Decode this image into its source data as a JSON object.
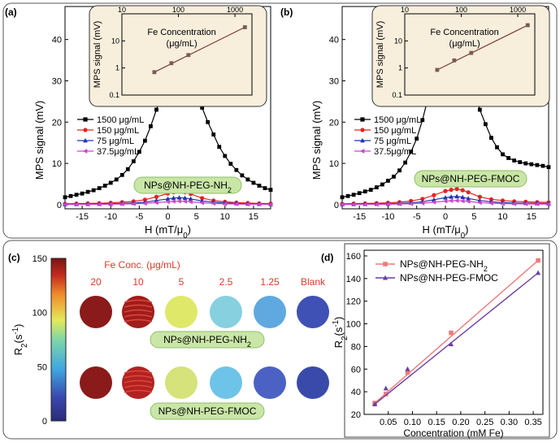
{
  "figure": {
    "panels": {
      "a": "(a)",
      "b": "(b)",
      "c": "(c)",
      "d": "(d)"
    }
  },
  "chart_data": [
    {
      "id": "a",
      "type": "line",
      "xlabel": "H (mT/μ0)",
      "ylabel": "MPS signal (mV)",
      "xlim": [
        -18,
        18
      ],
      "ylim": [
        -1,
        48
      ],
      "xticks": [
        -15,
        -10,
        -5,
        0,
        5,
        10,
        15
      ],
      "yticks": [
        0,
        10,
        20,
        30,
        40
      ],
      "label_box": "NPs@NH-PEG-NH2",
      "series": [
        {
          "name": "1500 μg/mL",
          "color": "#000000",
          "marker": "square",
          "x": [
            -18,
            -17,
            -16,
            -15,
            -14,
            -13,
            -12,
            -11,
            -10,
            -9,
            -8,
            -7,
            -6,
            -5,
            -4,
            -3,
            -2,
            -1,
            0,
            1,
            2,
            3,
            4,
            5,
            6,
            7,
            8,
            9,
            10,
            11,
            12,
            13,
            14,
            15,
            16,
            17,
            18
          ],
          "y": [
            1.8,
            2.1,
            2.4,
            2.7,
            3.1,
            3.5,
            4.0,
            4.6,
            5.3,
            6.1,
            7.2,
            8.6,
            10.5,
            12.8,
            15.5,
            19,
            23,
            27,
            30,
            31.5,
            32.5,
            31.5,
            29.8,
            27,
            23.5,
            20,
            17,
            14,
            11.8,
            9.9,
            8.4,
            7.1,
            6.1,
            5.3,
            4.6,
            4.0,
            3.6
          ]
        },
        {
          "name": "150 μg/mL",
          "color": "#e8231e",
          "marker": "circle",
          "x": [
            -18,
            -16,
            -14,
            -12,
            -10,
            -8,
            -6,
            -4,
            -2,
            0,
            1,
            2,
            3,
            4,
            6,
            8,
            10,
            12,
            14,
            16,
            18
          ],
          "y": [
            0.2,
            0.25,
            0.3,
            0.35,
            0.45,
            0.6,
            0.8,
            1.2,
            1.9,
            2.7,
            3.0,
            3.2,
            3.0,
            2.6,
            1.6,
            1.0,
            0.7,
            0.5,
            0.4,
            0.3,
            0.25
          ]
        },
        {
          "name": "75 μg/mL",
          "color": "#2233aa",
          "marker": "triangle",
          "x": [
            -18,
            -16,
            -14,
            -12,
            -10,
            -8,
            -6,
            -4,
            -2,
            0,
            1,
            2,
            3,
            4,
            6,
            8,
            10,
            12,
            14,
            16,
            18
          ],
          "y": [
            0.1,
            0.12,
            0.15,
            0.18,
            0.22,
            0.3,
            0.4,
            0.6,
            1.0,
            1.4,
            1.6,
            1.7,
            1.6,
            1.4,
            0.9,
            0.6,
            0.4,
            0.3,
            0.2,
            0.15,
            0.12
          ]
        },
        {
          "name": "37.5μg/mL",
          "color": "#cc44cc",
          "marker": "triangle-left",
          "x": [
            -18,
            -16,
            -14,
            -12,
            -10,
            -8,
            -6,
            -4,
            -2,
            0,
            1,
            2,
            3,
            4,
            6,
            8,
            10,
            12,
            14,
            16,
            18
          ],
          "y": [
            0.05,
            0.06,
            0.07,
            0.08,
            0.1,
            0.15,
            0.2,
            0.3,
            0.5,
            0.7,
            0.8,
            0.85,
            0.8,
            0.7,
            0.45,
            0.3,
            0.2,
            0.15,
            0.1,
            0.08,
            0.06
          ]
        }
      ],
      "inset": {
        "type": "line",
        "xlabel": "Fe Concentration (μg/mL)",
        "ylabel": "MPS signal (mV)",
        "scale": "log-log",
        "xlim": [
          10,
          2000
        ],
        "ylim": [
          0.1,
          100
        ],
        "xticks": [
          10,
          100,
          1000
        ],
        "yticks": [
          0.1,
          1,
          10
        ],
        "x": [
          37.5,
          75,
          150,
          1500
        ],
        "y": [
          0.7,
          1.5,
          3.0,
          32
        ]
      }
    },
    {
      "id": "b",
      "type": "line",
      "xlabel": "H (mT/μ0)",
      "ylabel": "MPS signal (mV)",
      "xlim": [
        -18,
        18
      ],
      "ylim": [
        -1,
        48
      ],
      "xticks": [
        -15,
        -10,
        -5,
        0,
        5,
        10,
        15
      ],
      "yticks": [
        0,
        10,
        20,
        30,
        40
      ],
      "label_box": "NPs@NH-PEG-FMOC",
      "series": [
        {
          "name": "1500 μg/mL",
          "color": "#000000",
          "marker": "square",
          "x": [
            -18,
            -17,
            -16,
            -15,
            -14,
            -13,
            -12,
            -11,
            -10,
            -9,
            -8,
            -7,
            -6,
            -5,
            -4,
            -3,
            -2,
            -1,
            0,
            1,
            2,
            3,
            4,
            5,
            6,
            7,
            8,
            9,
            10,
            11,
            12,
            13,
            14,
            15,
            16,
            17,
            18
          ],
          "y": [
            1.8,
            2.1,
            2.4,
            2.8,
            3.2,
            3.6,
            4.2,
            4.9,
            5.8,
            6.8,
            8.3,
            10.2,
            12.8,
            16,
            20.5,
            26,
            31.5,
            35.5,
            37.5,
            38.2,
            38.5,
            36,
            32,
            28,
            23,
            19.5,
            16.2,
            13.9,
            12.2,
            11.3,
            10.7,
            10.3,
            10.0,
            9.8,
            9.6,
            9.4,
            9.1
          ]
        },
        {
          "name": "150 μg/mL",
          "color": "#e8231e",
          "marker": "circle",
          "x": [
            -18,
            -16,
            -14,
            -12,
            -10,
            -8,
            -6,
            -4,
            -2,
            0,
            1,
            2,
            3,
            4,
            6,
            8,
            10,
            12,
            14,
            16,
            18
          ],
          "y": [
            0.2,
            0.25,
            0.3,
            0.35,
            0.45,
            0.6,
            0.9,
            1.4,
            2.3,
            3.3,
            3.6,
            3.8,
            3.5,
            3.0,
            1.9,
            1.3,
            1.0,
            0.8,
            0.7,
            0.6,
            0.55
          ]
        },
        {
          "name": "75 μg/mL",
          "color": "#2233aa",
          "marker": "triangle",
          "x": [
            -18,
            -16,
            -14,
            -12,
            -10,
            -8,
            -6,
            -4,
            -2,
            0,
            1,
            2,
            3,
            4,
            6,
            8,
            10,
            12,
            14,
            16,
            18
          ],
          "y": [
            0.1,
            0.12,
            0.15,
            0.18,
            0.22,
            0.3,
            0.45,
            0.7,
            1.2,
            1.7,
            1.9,
            2.0,
            1.8,
            1.5,
            1.0,
            0.7,
            0.5,
            0.4,
            0.35,
            0.3,
            0.28
          ]
        },
        {
          "name": "37.5μg/mL",
          "color": "#cc44cc",
          "marker": "triangle-left",
          "x": [
            -18,
            -16,
            -14,
            -12,
            -10,
            -8,
            -6,
            -4,
            -2,
            0,
            1,
            2,
            3,
            4,
            6,
            8,
            10,
            12,
            14,
            16,
            18
          ],
          "y": [
            0.05,
            0.06,
            0.07,
            0.08,
            0.1,
            0.15,
            0.22,
            0.35,
            0.6,
            0.85,
            0.95,
            1.0,
            0.9,
            0.8,
            0.5,
            0.35,
            0.25,
            0.2,
            0.18,
            0.15,
            0.14
          ]
        }
      ],
      "inset": {
        "type": "line",
        "xlabel": "Fe Concentration (μg/mL)",
        "ylabel": "MPS signal (mV)",
        "scale": "log-log",
        "xlim": [
          10,
          2000
        ],
        "ylim": [
          0.1,
          100
        ],
        "xticks": [
          10,
          100,
          1000
        ],
        "yticks": [
          0.1,
          1,
          10
        ],
        "x": [
          37.5,
          75,
          150,
          1500
        ],
        "y": [
          0.85,
          1.9,
          3.6,
          38
        ]
      }
    },
    {
      "id": "c",
      "type": "heatmap",
      "colorbar_label": "R2(s-1)",
      "colorbar_range": [
        0,
        150
      ],
      "colorbar_ticks": [
        0,
        50,
        100,
        150
      ],
      "header_label": "Fe Conc. (μg/mL)",
      "columns": [
        "20",
        "10",
        "5",
        "2.5",
        "1.25",
        "Blank"
      ],
      "rows": [
        {
          "name": "NPs@NH-PEG-NH2",
          "colors": [
            "#8b1a1a",
            "#a11c1c",
            "#e0e86a",
            "#86d0e0",
            "#5fa9e0",
            "#3f51b5"
          ]
        },
        {
          "name": "NPs@NH-PEG-FMOC",
          "colors": [
            "#8b1a1a",
            "#b22222",
            "#d6e27a",
            "#6ec3e8",
            "#4b62c4",
            "#3a4aab"
          ]
        }
      ]
    },
    {
      "id": "d",
      "type": "scatter",
      "xlabel": "Concentration (mM Fe)",
      "ylabel": "R2(s-1)",
      "xlim": [
        0,
        0.37
      ],
      "ylim": [
        20,
        165
      ],
      "xticks": [
        0.05,
        0.1,
        0.15,
        0.2,
        0.25,
        0.3,
        0.35
      ],
      "yticks": [
        20,
        40,
        60,
        80,
        100,
        120,
        140,
        160
      ],
      "series": [
        {
          "name": "NPs@NH-PEG-NH2",
          "color": "#f07a7a",
          "marker": "square",
          "x": [
            0.022,
            0.045,
            0.09,
            0.18,
            0.36
          ],
          "y": [
            30,
            38,
            57,
            92,
            156
          ]
        },
        {
          "name": "NPs@NH-PEG-FMOC",
          "color": "#6a3fa0",
          "marker": "triangle",
          "x": [
            0.022,
            0.045,
            0.09,
            0.18,
            0.36
          ],
          "y": [
            29,
            43,
            60,
            82,
            145
          ]
        }
      ]
    }
  ]
}
